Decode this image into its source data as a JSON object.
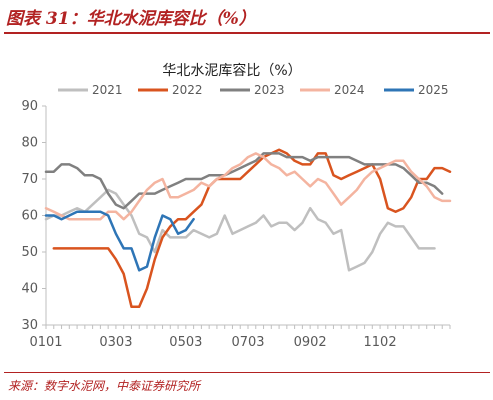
{
  "figure": {
    "title": "图表 31：华北水泥库容比（%）",
    "source": "来源：数字水泥网，中泰证券研究所"
  },
  "colors": {
    "accent": "#b22222",
    "axis": "#bfbfbf",
    "tick_text": "#595959"
  },
  "chart_data": {
    "type": "line",
    "title": "华北水泥库容比（%）",
    "xlabel": "",
    "ylabel": "",
    "x_domain": [
      1,
      53
    ],
    "x_ticks": [
      1,
      10,
      19,
      27,
      35,
      44
    ],
    "x_tick_labels": [
      "0101",
      "0303",
      "0503",
      "0703",
      "0902",
      "1102"
    ],
    "ylim": [
      30,
      90
    ],
    "y_ticks": [
      30,
      40,
      50,
      60,
      70,
      80,
      90
    ],
    "grid": false,
    "legend_position": "top",
    "series": [
      {
        "name": "2021",
        "color": "#bfbfbf",
        "x": [
          1,
          2,
          3,
          4,
          5,
          6,
          7,
          8,
          9,
          10,
          11,
          12,
          13,
          14,
          15,
          16,
          17,
          18,
          19,
          20,
          21,
          22,
          23,
          24,
          25,
          26,
          27,
          28,
          29,
          30,
          31,
          32,
          33,
          34,
          35,
          36,
          37,
          38,
          39,
          40,
          41,
          42,
          43,
          44,
          45,
          46,
          47,
          48,
          49,
          50,
          51,
          52,
          53
        ],
        "values": [
          59,
          60,
          60,
          61,
          62,
          61,
          63,
          65,
          67,
          66,
          63,
          60,
          55,
          54,
          50,
          56,
          54,
          54,
          54,
          56,
          55,
          54,
          55,
          60,
          55,
          56,
          57,
          58,
          60,
          57,
          58,
          58,
          56,
          58,
          62,
          59,
          58,
          55,
          56,
          45,
          46,
          47,
          50,
          55,
          58,
          57,
          57,
          54,
          51,
          51,
          51,
          null,
          null
        ]
      },
      {
        "name": "2022",
        "color": "#d9541f",
        "x": [
          1,
          2,
          3,
          4,
          5,
          6,
          7,
          8,
          9,
          10,
          11,
          12,
          13,
          14,
          15,
          16,
          17,
          18,
          19,
          20,
          21,
          22,
          23,
          24,
          25,
          26,
          27,
          28,
          29,
          30,
          31,
          32,
          33,
          34,
          35,
          36,
          37,
          38,
          39,
          40,
          41,
          42,
          43,
          44,
          45,
          46,
          47,
          48,
          49,
          50,
          51,
          52,
          53
        ],
        "values": [
          null,
          51,
          51,
          51,
          51,
          51,
          51,
          51,
          51,
          48,
          44,
          35,
          35,
          40,
          48,
          54,
          57,
          59,
          59,
          61,
          63,
          68,
          70,
          70,
          70,
          70,
          72,
          74,
          76,
          77,
          78,
          77,
          75,
          74,
          74,
          77,
          77,
          71,
          70,
          71,
          72,
          73,
          74,
          70,
          62,
          61,
          62,
          65,
          70,
          70,
          73,
          73,
          72
        ]
      },
      {
        "name": "2023",
        "color": "#808080",
        "x": [
          1,
          2,
          3,
          4,
          5,
          6,
          7,
          8,
          9,
          10,
          11,
          12,
          13,
          14,
          15,
          16,
          17,
          18,
          19,
          20,
          21,
          22,
          23,
          24,
          25,
          26,
          27,
          28,
          29,
          30,
          31,
          32,
          33,
          34,
          35,
          36,
          37,
          38,
          39,
          40,
          41,
          42,
          43,
          44,
          45,
          46,
          47,
          48,
          49,
          50,
          51,
          52,
          53
        ],
        "values": [
          72,
          72,
          74,
          74,
          73,
          71,
          71,
          70,
          66,
          63,
          62,
          64,
          66,
          66,
          66,
          67,
          68,
          69,
          70,
          70,
          70,
          71,
          71,
          71,
          72,
          73,
          74,
          75,
          77,
          77,
          77,
          76,
          76,
          76,
          75,
          76,
          76,
          76,
          76,
          76,
          75,
          74,
          74,
          74,
          74,
          74,
          73,
          71,
          69,
          69,
          68,
          66,
          null
        ]
      },
      {
        "name": "2024",
        "color": "#f4b4a0",
        "x": [
          1,
          2,
          3,
          4,
          5,
          6,
          7,
          8,
          9,
          10,
          11,
          12,
          13,
          14,
          15,
          16,
          17,
          18,
          19,
          20,
          21,
          22,
          23,
          24,
          25,
          26,
          27,
          28,
          29,
          30,
          31,
          32,
          33,
          34,
          35,
          36,
          37,
          38,
          39,
          40,
          41,
          42,
          43,
          44,
          45,
          46,
          47,
          48,
          49,
          50,
          51,
          52,
          53
        ],
        "values": [
          62,
          61,
          60,
          59,
          59,
          59,
          59,
          59,
          61,
          61,
          59,
          61,
          64,
          67,
          69,
          70,
          65,
          65,
          66,
          67,
          69,
          68,
          70,
          71,
          73,
          74,
          76,
          77,
          76,
          74,
          73,
          71,
          72,
          70,
          68,
          70,
          69,
          66,
          63,
          65,
          67,
          70,
          72,
          73,
          74,
          75,
          75,
          72,
          70,
          68,
          65,
          64,
          64
        ]
      },
      {
        "name": "2025",
        "color": "#2e75b6",
        "x": [
          1,
          2,
          3,
          4,
          5,
          6,
          7,
          8,
          9,
          10,
          11,
          12,
          13,
          14,
          15,
          16,
          17,
          18,
          19,
          20,
          21,
          22,
          23,
          24,
          25,
          26,
          27,
          28,
          29,
          30,
          31,
          32,
          33,
          34,
          35,
          36,
          37,
          38,
          39,
          40,
          41,
          42,
          43,
          44,
          45,
          46,
          47,
          48,
          49,
          50,
          51,
          52,
          53
        ],
        "values": [
          60,
          60,
          59,
          60,
          61,
          61,
          61,
          61,
          60,
          55,
          51,
          51,
          45,
          46,
          54,
          60,
          59,
          55,
          56,
          59,
          null,
          null,
          null,
          null,
          null,
          null,
          null,
          null,
          null,
          null,
          null,
          null,
          null,
          null,
          null,
          null,
          null,
          null,
          null,
          null,
          null,
          null,
          null,
          null,
          null,
          null,
          null,
          null,
          null,
          null,
          null,
          null,
          null
        ]
      }
    ]
  }
}
